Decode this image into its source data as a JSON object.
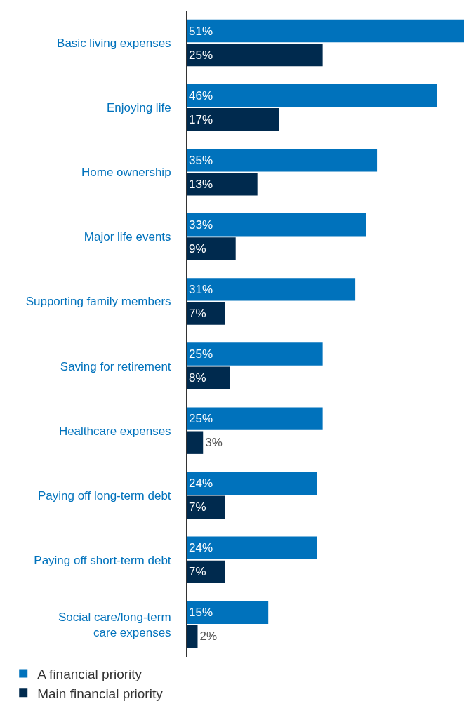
{
  "chart_data": {
    "type": "bar",
    "orientation": "horizontal",
    "categories": [
      "Basic living expenses",
      "Enjoying life",
      "Home ownership",
      "Major life events",
      "Supporting family members",
      "Saving for retirement",
      "Healthcare expenses",
      "Paying off long-term debt",
      "Paying off short-term debt",
      "Social care/long-term\ncare expenses"
    ],
    "series": [
      {
        "name": "A financial priority",
        "color": "#0072bc",
        "values": [
          51,
          46,
          35,
          33,
          31,
          25,
          25,
          24,
          24,
          15
        ],
        "value_labels": [
          "51%",
          "46%",
          "35%",
          "33%",
          "31%",
          "25%",
          "25%",
          "24%",
          "24%",
          "15%"
        ]
      },
      {
        "name": "Main financial priority",
        "color": "#002a4e",
        "values": [
          25,
          17,
          13,
          9,
          7,
          8,
          3,
          7,
          7,
          2
        ],
        "value_labels": [
          "25%",
          "17%",
          "13%",
          "9%",
          "7%",
          "8%",
          "3%",
          "7%",
          "7%",
          "2%"
        ]
      }
    ],
    "legend": "bottom left"
  }
}
